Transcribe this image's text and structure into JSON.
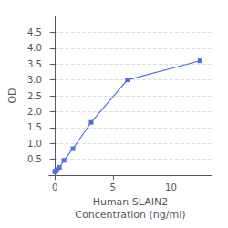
{
  "chart_data": {
    "type": "line",
    "x": [
      0.0,
      0.049,
      0.098,
      0.195,
      0.391,
      0.781,
      1.563,
      3.125,
      6.25,
      12.5
    ],
    "values": [
      0.106,
      0.118,
      0.138,
      0.175,
      0.243,
      0.466,
      0.834,
      1.66,
      3.0,
      3.6
    ],
    "xlabel": "Human SLAIN2\nConcentration (ng/ml)",
    "ylabel": "OD",
    "xlim": [
      -0.5,
      13.5
    ],
    "xticks": [
      0,
      5,
      10
    ],
    "ylim": [
      0,
      5.0
    ],
    "yticks": [
      0.5,
      {
        "value": 1.0,
        "label": "1.0"
      },
      1.5,
      {
        "value": 2.0,
        "label": "2.0"
      },
      2.5,
      {
        "value": 3.0,
        "label": "3.0"
      },
      3.5,
      {
        "value": 4.0,
        "label": "4.0"
      },
      4.5
    ],
    "marker": "square",
    "grid": "y"
  }
}
